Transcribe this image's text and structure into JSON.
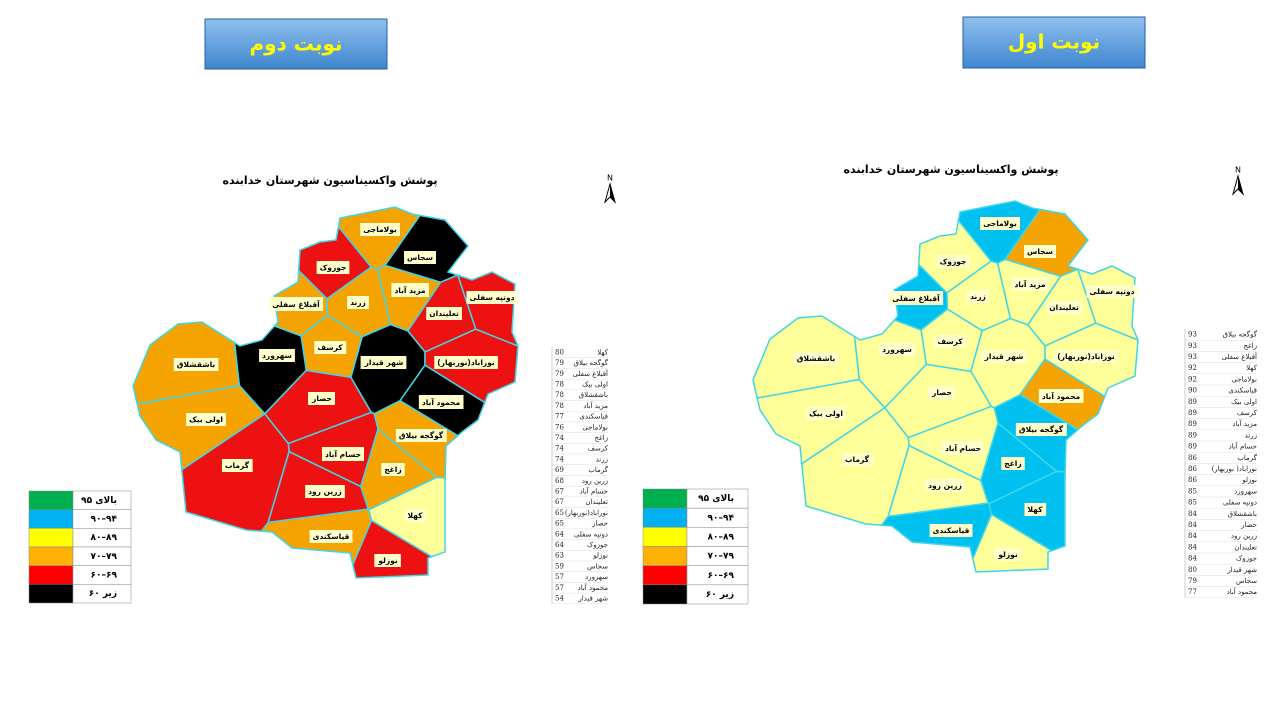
{
  "round2": {
    "header": "نوبت دوم",
    "map_title": "پوشش واکسیناسیون شهرستان خدابنده",
    "north": "N",
    "regions": [
      {
        "label": "بولاماجی",
        "color": "#f5a300"
      },
      {
        "label": "سجاس",
        "color": "#000000"
      },
      {
        "label": "جوزوک",
        "color": "#ee1111"
      },
      {
        "label": "مزید آباد",
        "color": "#f5a300"
      },
      {
        "label": "زرند",
        "color": "#f5a300"
      },
      {
        "label": "آقبلاغ سفلی",
        "color": "#f5a300"
      },
      {
        "label": "دوتپه سفلی",
        "color": "#ee1111"
      },
      {
        "label": "تعلیندان",
        "color": "#ee1111"
      },
      {
        "label": "کرسف",
        "color": "#f5a300"
      },
      {
        "label": "سهرورد",
        "color": "#000000"
      },
      {
        "label": "شهر قیدار",
        "color": "#000000"
      },
      {
        "label": "نوراباد(نوربهار)",
        "color": "#ee1111"
      },
      {
        "label": "باشقشلاق",
        "color": "#f5a300"
      },
      {
        "label": "حصار",
        "color": "#ee1111"
      },
      {
        "label": "محمود آباد",
        "color": "#000000"
      },
      {
        "label": "اولی بیک",
        "color": "#f5a300"
      },
      {
        "label": "گوگجه بیلاق",
        "color": "#f5a300"
      },
      {
        "label": "حسام آباد",
        "color": "#ee1111"
      },
      {
        "label": "گرماب",
        "color": "#ee1111"
      },
      {
        "label": "زاغج",
        "color": "#f5a300"
      },
      {
        "label": "زرین رود",
        "color": "#ee1111"
      },
      {
        "label": "کهلا",
        "color": "#ffff99"
      },
      {
        "label": "قیاسکندی",
        "color": "#f5a300"
      },
      {
        "label": "نوزلو",
        "color": "#ee1111"
      }
    ],
    "legend": [
      {
        "label": "بالای ۹۵",
        "color": "#00b050"
      },
      {
        "label": "۹۰–۹۴",
        "color": "#00b0f0"
      },
      {
        "label": "۸۰–۸۹",
        "color": "#ffff00"
      },
      {
        "label": "۷۰–۷۹",
        "color": "#ffb000"
      },
      {
        "label": "۶۰–۶۹",
        "color": "#ff0000"
      },
      {
        "label": "زیر ۶۰",
        "color": "#000000"
      }
    ],
    "table": [
      [
        "کهلا",
        80
      ],
      [
        "گوگجه بیلاق",
        79
      ],
      [
        "آقبلاغ سفلی",
        79
      ],
      [
        "اولی بیک",
        78
      ],
      [
        "باشقشلاق",
        78
      ],
      [
        "مزید آباد",
        78
      ],
      [
        "قیاسکندی",
        77
      ],
      [
        "بولاماجی",
        76
      ],
      [
        "زاغج",
        74
      ],
      [
        "کرسف",
        74
      ],
      [
        "زرند",
        74
      ],
      [
        "گرماب",
        69
      ],
      [
        "زرین رود",
        68
      ],
      [
        "حسام آباد",
        67
      ],
      [
        "تعلیندان",
        67
      ],
      [
        "نوراباد(نوربهار)",
        65
      ],
      [
        "حصار",
        65
      ],
      [
        "دوتپه سفلی",
        64
      ],
      [
        "جوزوک",
        64
      ],
      [
        "نوزلو",
        63
      ],
      [
        "سجاس",
        59
      ],
      [
        "سهرورد",
        57
      ],
      [
        "محمود آباد",
        57
      ],
      [
        "شهر قیدار",
        54
      ]
    ]
  },
  "round1": {
    "header": "نوبت اول",
    "map_title": "پوشش واکسیناسیون شهرستان خدابنده",
    "north": "N",
    "regions": [
      {
        "label": "بولاماجی",
        "color": "#00c0f0"
      },
      {
        "label": "سجاس",
        "color": "#f5a300"
      },
      {
        "label": "جوزوک",
        "color": "#ffff99"
      },
      {
        "label": "مزید آباد",
        "color": "#ffff99"
      },
      {
        "label": "زرند",
        "color": "#ffff99"
      },
      {
        "label": "آقبلاغ سفلی",
        "color": "#00c0f0"
      },
      {
        "label": "دوتپه سفلی",
        "color": "#ffff99"
      },
      {
        "label": "تعلیندان",
        "color": "#ffff99"
      },
      {
        "label": "کرسف",
        "color": "#ffff99"
      },
      {
        "label": "سهرورد",
        "color": "#ffff99"
      },
      {
        "label": "شهر قیدار",
        "color": "#ffff99"
      },
      {
        "label": "نوراباد(نوربهار)",
        "color": "#ffff99"
      },
      {
        "label": "باشقشلاق",
        "color": "#ffff99"
      },
      {
        "label": "حصار",
        "color": "#ffff99"
      },
      {
        "label": "محمود آباد",
        "color": "#f5a300"
      },
      {
        "label": "اولی بیک",
        "color": "#ffff99"
      },
      {
        "label": "گوگجه بیلاق",
        "color": "#00c0f0"
      },
      {
        "label": "حسام آباد",
        "color": "#ffff99"
      },
      {
        "label": "گرماب",
        "color": "#ffff99"
      },
      {
        "label": "زاغج",
        "color": "#00c0f0"
      },
      {
        "label": "زرین رود",
        "color": "#ffff99"
      },
      {
        "label": "کهلا",
        "color": "#00c0f0"
      },
      {
        "label": "قیاسکندی",
        "color": "#00c0f0"
      },
      {
        "label": "نوزلو",
        "color": "#ffff99"
      }
    ],
    "legend": [
      {
        "label": "بالای ۹۵",
        "color": "#00b050"
      },
      {
        "label": "۹۰–۹۴",
        "color": "#00b0f0"
      },
      {
        "label": "۸۰–۸۹",
        "color": "#ffff00"
      },
      {
        "label": "۷۰–۷۹",
        "color": "#ffb000"
      },
      {
        "label": "۶۰–۶۹",
        "color": "#ff0000"
      },
      {
        "label": "زیر ۶۰",
        "color": "#000000"
      }
    ],
    "table": [
      [
        "گوگجه بیلاق",
        93
      ],
      [
        "زاغج",
        93
      ],
      [
        "آقبلاغ سفلی",
        93
      ],
      [
        "کهلا",
        92
      ],
      [
        "بولاماجی",
        92
      ],
      [
        "قیاسکندی",
        90
      ],
      [
        "اولی بیک",
        89
      ],
      [
        "کرسف",
        89
      ],
      [
        "مزید آباد",
        89
      ],
      [
        "زرند",
        89
      ],
      [
        "حسام آباد",
        89
      ],
      [
        "گرماب",
        86
      ],
      [
        "نوراباد( نوربهار)",
        86
      ],
      [
        "نوزلو",
        86
      ],
      [
        "سهرورد",
        85
      ],
      [
        "دوتپه سفلی",
        85
      ],
      [
        "باشقشلاق",
        84
      ],
      [
        "حصار",
        84
      ],
      [
        "زرین رود",
        84
      ],
      [
        "تعلیندان",
        84
      ],
      [
        "جوزوک",
        84
      ],
      [
        "شهر قیدار",
        80
      ],
      [
        "سجاس",
        79
      ],
      [
        "محمود آباد",
        77
      ]
    ]
  }
}
